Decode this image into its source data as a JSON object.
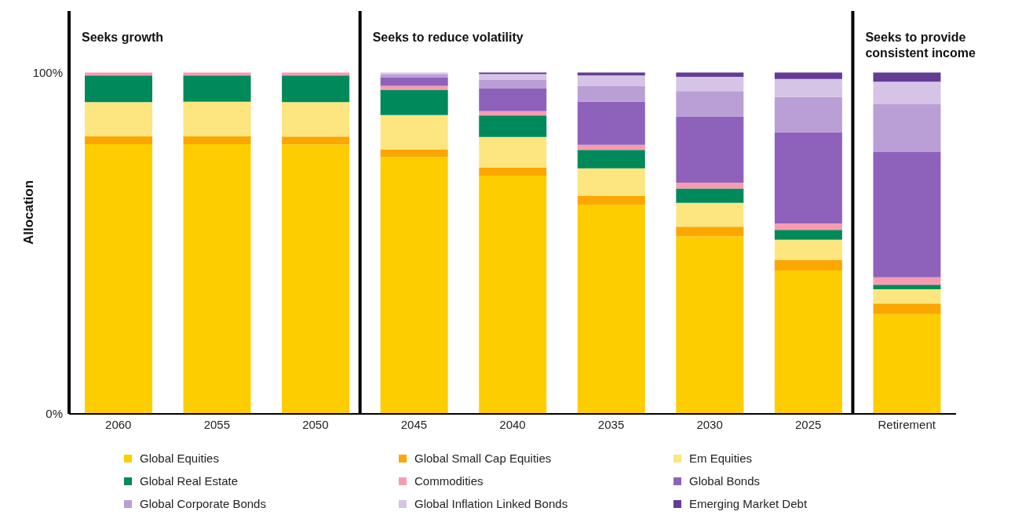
{
  "chart_data": {
    "type": "bar",
    "stacked": true,
    "ylabel": "Allocation",
    "categories": [
      "2060",
      "2055",
      "2050",
      "2045",
      "2040",
      "2035",
      "2030",
      "2025",
      "Retirement"
    ],
    "series": [
      {
        "name": "Global Equities",
        "color": "#fdcd00",
        "values": [
          79,
          79,
          78.9,
          75.2,
          69.8,
          61.3,
          52,
          42,
          29.2
        ]
      },
      {
        "name": "Global Small Cap Equities",
        "color": "#fca600",
        "values": [
          2.3,
          2.3,
          2.3,
          2.3,
          2.3,
          2.5,
          2.8,
          3.1,
          3.1
        ]
      },
      {
        "name": "Em Equities",
        "color": "#fde57f",
        "values": [
          10,
          10.1,
          10.1,
          10,
          9,
          8.1,
          7,
          5.9,
          4.2
        ]
      },
      {
        "name": "Global Real Estate",
        "color": "#00895a",
        "values": [
          7.8,
          7.7,
          7.8,
          7.4,
          6.3,
          5.4,
          4.2,
          2.9,
          1.3
        ]
      },
      {
        "name": "Commodities",
        "color": "#f89bb0",
        "values": [
          0.9,
          0.9,
          0.9,
          1.2,
          1.3,
          1.5,
          1.7,
          1.9,
          2.2
        ]
      },
      {
        "name": "Global Bonds",
        "color": "#8e62bb",
        "values": [
          0,
          0,
          0,
          2.5,
          6.6,
          12.6,
          19.4,
          26.7,
          36.7
        ]
      },
      {
        "name": "Global Corporate Bonds",
        "color": "#b99fd6",
        "values": [
          0,
          0,
          0,
          0.9,
          2.5,
          4.7,
          7.4,
          10.3,
          14
        ]
      },
      {
        "name": "Global Inflation Linked Bonds",
        "color": "#d5c4e6",
        "values": [
          0,
          0,
          0,
          0.5,
          1.7,
          3,
          4.2,
          5.3,
          6.6
        ]
      },
      {
        "name": "Emerging Market Debt",
        "color": "#643c94",
        "values": [
          0,
          0,
          0,
          0,
          0.5,
          0.9,
          1.3,
          1.9,
          2.7
        ]
      }
    ],
    "ylim": [
      0,
      118
    ],
    "yticks": [
      {
        "value": 0,
        "label": "0%"
      },
      {
        "value": 100,
        "label": "100%"
      }
    ],
    "legend": "bottom",
    "annotations": [
      "Seeks growth",
      "Seeks to reduce volatility",
      "Seeks to provide consistent income"
    ]
  }
}
